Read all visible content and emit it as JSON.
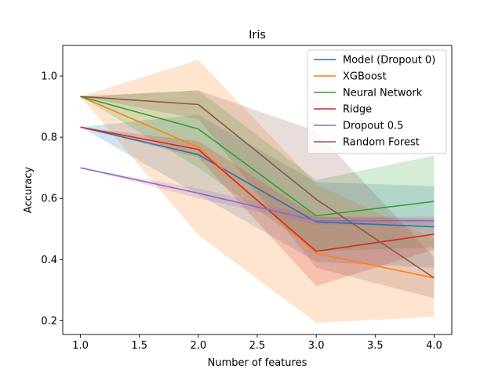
{
  "chart_data": {
    "type": "line",
    "title": "Iris",
    "xlabel": "Number of features",
    "ylabel": "Accuracy",
    "xlim": [
      0.85,
      4.15
    ],
    "ylim": [
      0.155,
      1.1
    ],
    "xticks": [
      1.0,
      1.5,
      2.0,
      2.5,
      3.0,
      3.5,
      4.0
    ],
    "xtick_labels": [
      "1.0",
      "1.5",
      "2.0",
      "2.5",
      "3.0",
      "3.5",
      "4.0"
    ],
    "yticks": [
      0.2,
      0.4,
      0.6,
      0.8,
      1.0
    ],
    "ytick_labels": [
      "0.2",
      "0.4",
      "0.6",
      "0.8",
      "1.0"
    ],
    "grid": false,
    "legend_position": "upper-right",
    "x": [
      1,
      2,
      3,
      4
    ],
    "series": [
      {
        "name": "Model (Dropout 0)",
        "color": "#1f77b4",
        "values": [
          0.833,
          0.743,
          0.523,
          0.507
        ],
        "lower": [
          0.833,
          0.613,
          0.393,
          0.373
        ],
        "upper": [
          0.833,
          0.873,
          0.653,
          0.64
        ]
      },
      {
        "name": "XGBoost",
        "color": "#ff7f0e",
        "values": [
          0.933,
          0.767,
          0.42,
          0.34
        ],
        "lower": [
          0.933,
          0.48,
          0.193,
          0.213
        ],
        "upper": [
          0.933,
          1.053,
          0.647,
          0.467
        ]
      },
      {
        "name": "Neural Network",
        "color": "#2ca02c",
        "values": [
          0.933,
          0.827,
          0.543,
          0.59
        ],
        "lower": [
          0.933,
          0.7,
          0.427,
          0.44
        ],
        "upper": [
          0.933,
          0.953,
          0.66,
          0.74
        ]
      },
      {
        "name": "Ridge",
        "color": "#d62728",
        "values": [
          0.833,
          0.76,
          0.427,
          0.483
        ],
        "lower": [
          0.833,
          0.733,
          0.313,
          0.433
        ],
        "upper": [
          0.833,
          0.787,
          0.54,
          0.533
        ]
      },
      {
        "name": "Dropout 0.5",
        "color": "#9467bd",
        "values": [
          0.7,
          0.617,
          0.527,
          0.527
        ],
        "lower": [
          0.7,
          0.6,
          0.513,
          0.513
        ],
        "upper": [
          0.7,
          0.633,
          0.54,
          0.54
        ]
      },
      {
        "name": "Random Forest",
        "color": "#8c564b",
        "values": [
          0.933,
          0.907,
          0.597,
          0.34
        ],
        "lower": [
          0.933,
          0.86,
          0.373,
          0.273
        ],
        "upper": [
          0.933,
          0.953,
          0.82,
          0.407
        ]
      }
    ]
  }
}
